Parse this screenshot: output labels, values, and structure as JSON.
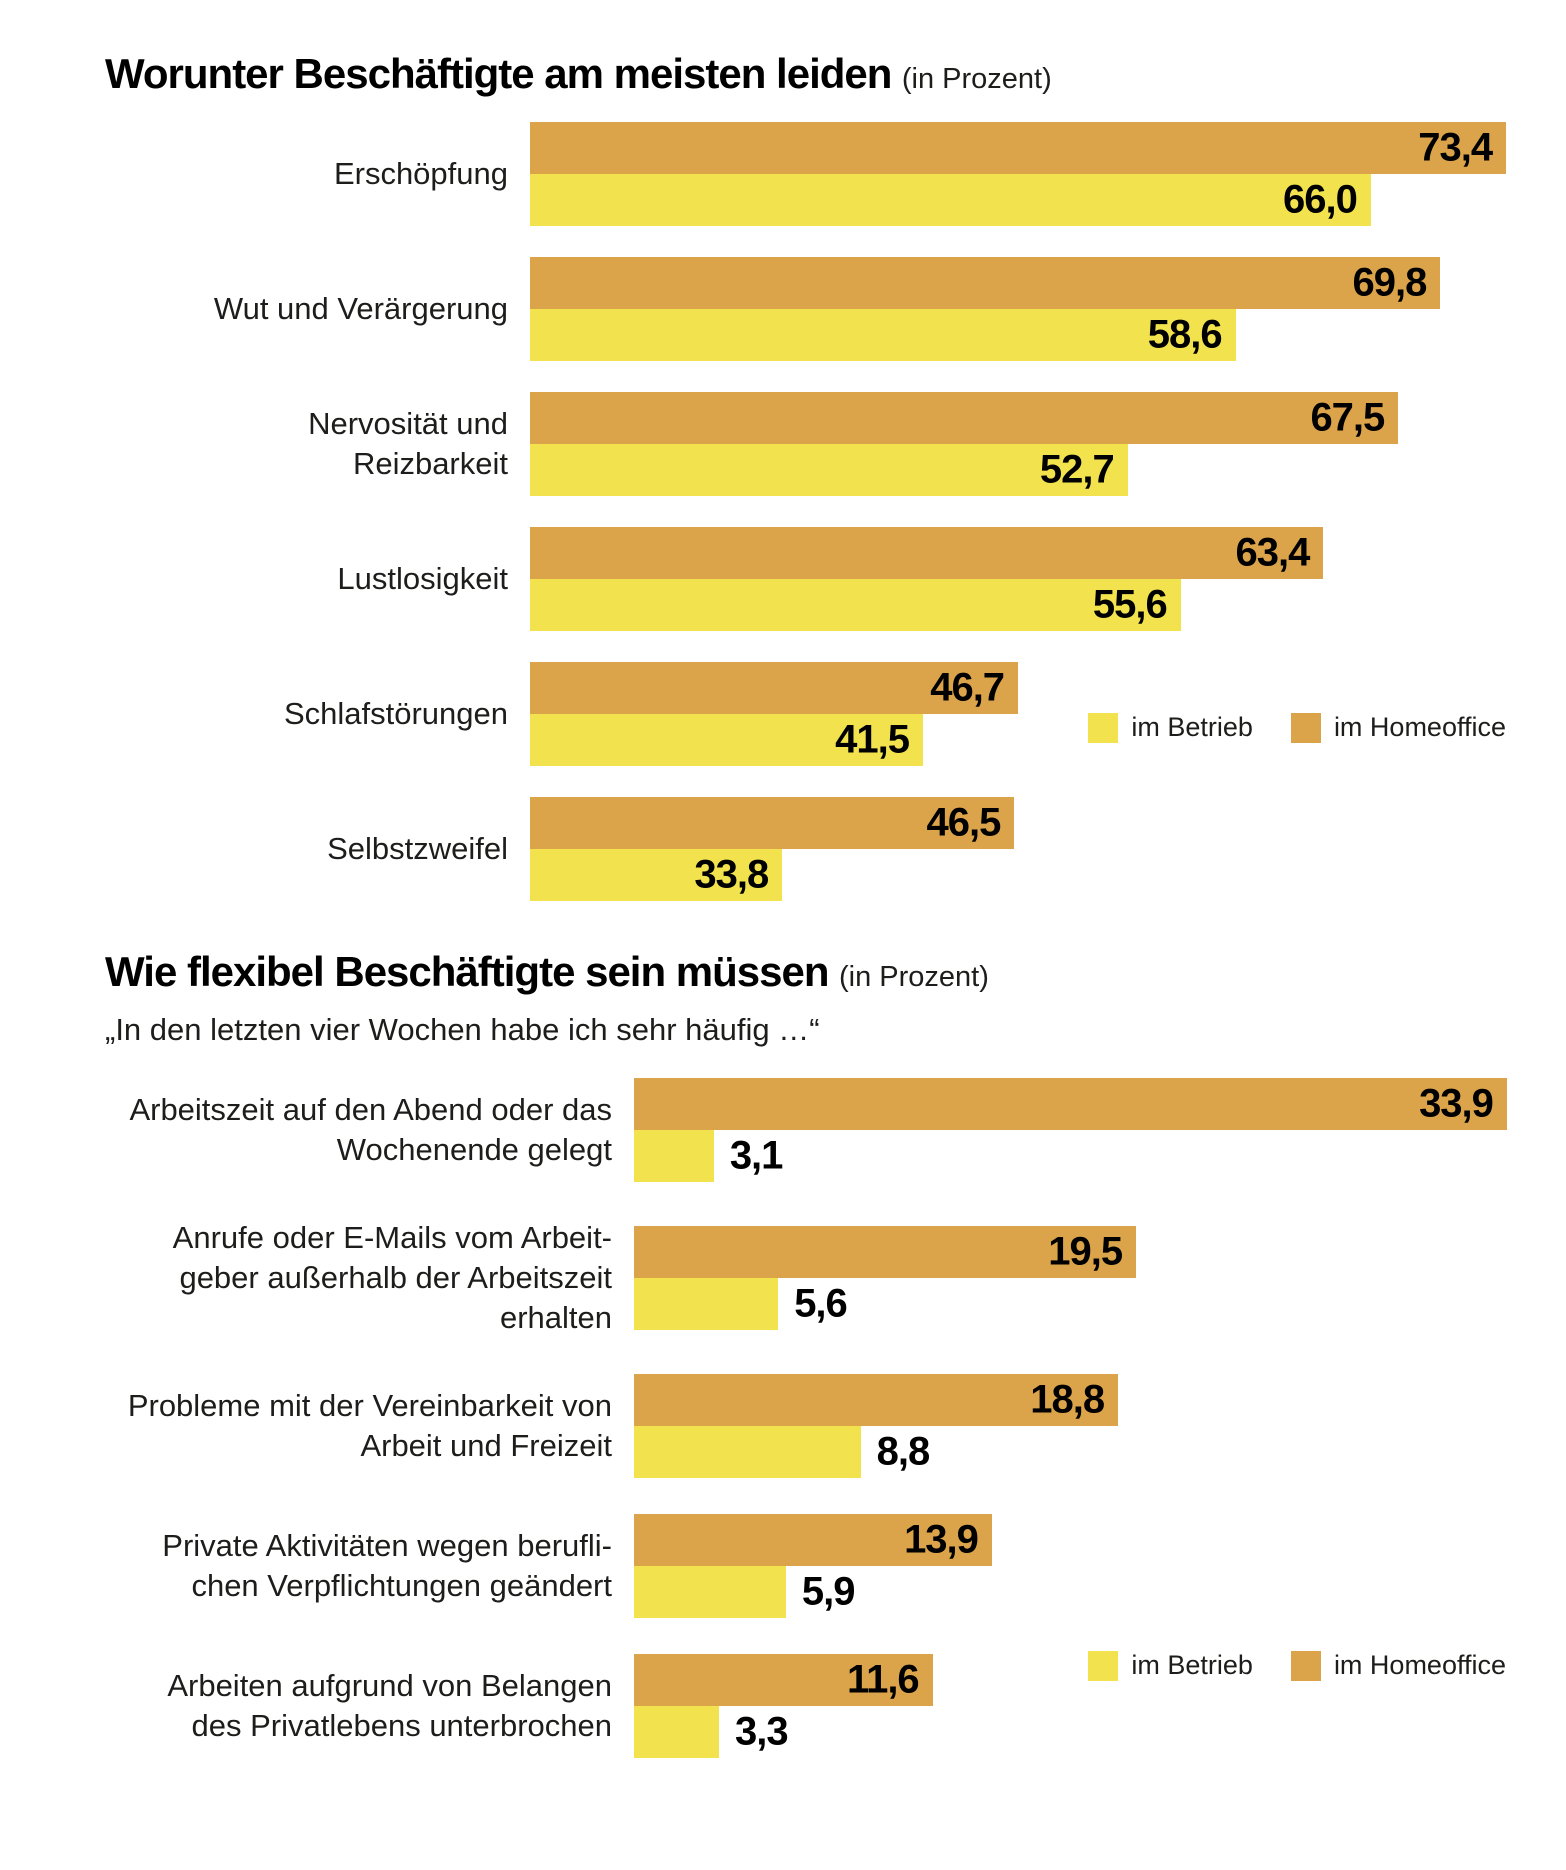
{
  "colors": {
    "im_betrieb": "#F2E34E",
    "im_homeoffice": "#DCA44A",
    "text": "#1D1D1B"
  },
  "legend": {
    "betrieb_label": "im Betrieb",
    "homeoffice_label": "im Homeoffice"
  },
  "chart1": {
    "title": "Worunter Beschäftigte am meisten leiden",
    "unit": "(in Prozent)",
    "rows": [
      {
        "label": "Erschöpfung",
        "ho": 73.4,
        "be": 66.0,
        "ho_text": "73,4",
        "be_text": "66,0"
      },
      {
        "label": "Wut und Verärgerung",
        "ho": 69.8,
        "be": 58.6,
        "ho_text": "69,8",
        "be_text": "58,6"
      },
      {
        "label": "Nervosität und\nReizbarkeit",
        "ho": 67.5,
        "be": 52.7,
        "ho_text": "67,5",
        "be_text": "52,7"
      },
      {
        "label": "Lustlosigkeit",
        "ho": 63.4,
        "be": 55.6,
        "ho_text": "63,4",
        "be_text": "55,6"
      },
      {
        "label": "Schlafstörungen",
        "ho": 46.7,
        "be": 41.5,
        "ho_text": "46,7",
        "be_text": "41,5"
      },
      {
        "label": "Selbstzweifel",
        "ho": 46.5,
        "be": 33.8,
        "ho_text": "46,5",
        "be_text": "33,8"
      }
    ]
  },
  "chart2": {
    "title": "Wie flexibel Beschäftigte sein müssen",
    "unit": "(in Prozent)",
    "subtitle": "„In den letzten vier Wochen habe ich sehr häufig …“",
    "rows": [
      {
        "label": "Arbeitszeit auf den Abend oder das\nWochenende gelegt",
        "ho": 33.9,
        "be": 3.1,
        "ho_text": "33,9",
        "be_text": "3,1"
      },
      {
        "label": "Anrufe oder E-Mails vom Arbeit-\ngeber außerhalb der Arbeitszeit\nerhalten",
        "ho": 19.5,
        "be": 5.6,
        "ho_text": "19,5",
        "be_text": "5,6"
      },
      {
        "label": "Probleme mit der Vereinbarkeit von\nArbeit und Freizeit",
        "ho": 18.8,
        "be": 8.8,
        "ho_text": "18,8",
        "be_text": "8,8"
      },
      {
        "label": "Private Aktivitäten wegen berufli-\nchen Verpflichtungen geändert",
        "ho": 13.9,
        "be": 5.9,
        "ho_text": "13,9",
        "be_text": "5,9"
      },
      {
        "label": "Arbeiten aufgrund von Belangen\ndes Privatlebens unterbrochen",
        "ho": 11.6,
        "be": 3.3,
        "ho_text": "11,6",
        "be_text": "3,3"
      }
    ]
  },
  "chart_data": [
    {
      "type": "bar",
      "orientation": "horizontal",
      "title": "Worunter Beschäftigte am meisten leiden",
      "unit_label": "(in Prozent)",
      "categories": [
        "Erschöpfung",
        "Wut und Verärgerung",
        "Nervosität und Reizbarkeit",
        "Lustlosigkeit",
        "Schlafstörungen",
        "Selbstzweifel"
      ],
      "series": [
        {
          "name": "im Betrieb",
          "color": "#F2E34E",
          "values": [
            66.0,
            58.6,
            52.7,
            55.6,
            41.5,
            33.8
          ]
        },
        {
          "name": "im Homeoffice",
          "color": "#DCA44A",
          "values": [
            73.4,
            69.8,
            67.5,
            63.4,
            46.7,
            46.5
          ]
        }
      ],
      "value_labels": true,
      "xlim": [
        20,
        75
      ],
      "grid": false,
      "legend_position": "right-middle"
    },
    {
      "type": "bar",
      "orientation": "horizontal",
      "title": "Wie flexibel Beschäftigte sein müssen",
      "unit_label": "(in Prozent)",
      "subtitle": "„In den letzten vier Wochen habe ich sehr häufig …“",
      "categories": [
        "Arbeitszeit auf den Abend oder das Wochenende gelegt",
        "Anrufe oder E-Mails vom Arbeitgeber außerhalb der Arbeitszeit erhalten",
        "Probleme mit der Vereinbarkeit von Arbeit und Freizeit",
        "Private Aktivitäten wegen beruflichen Verpflichtungen geändert",
        "Arbeiten aufgrund von Belangen des Privatlebens unterbrochen"
      ],
      "series": [
        {
          "name": "im Betrieb",
          "color": "#F2E34E",
          "values": [
            3.1,
            5.6,
            8.8,
            5.9,
            3.3
          ]
        },
        {
          "name": "im Homeoffice",
          "color": "#DCA44A",
          "values": [
            33.9,
            19.5,
            18.8,
            13.9,
            11.6
          ]
        }
      ],
      "value_labels": true,
      "xlim": [
        0,
        34
      ],
      "grid": false,
      "legend_position": "right-bottom"
    }
  ]
}
